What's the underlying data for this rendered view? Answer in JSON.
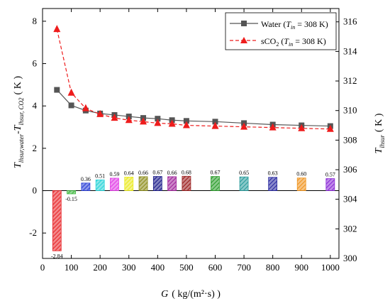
{
  "chart_data": {
    "type": "bar+line",
    "x_axis": {
      "label": "G",
      "unit": "( kg/(m²·s) )",
      "range": [
        0,
        1030
      ],
      "ticks": [
        0,
        100,
        200,
        300,
        400,
        500,
        600,
        700,
        800,
        900,
        1000
      ]
    },
    "y_left_axis": {
      "label_main": "T",
      "label_sub1": "lhsur,water",
      "label_mid": "-T",
      "label_sub2": "lhsur, CO2",
      "unit": "( K )",
      "range": [
        -3.2,
        8.6
      ],
      "ticks": [
        -2,
        0,
        2,
        4,
        6,
        8
      ]
    },
    "y_right_axis": {
      "label_main": "T",
      "label_sub": "lhsur",
      "unit": "( K )",
      "range": [
        300,
        316.9
      ],
      "ticks": [
        300,
        302,
        304,
        306,
        308,
        310,
        312,
        314,
        316
      ]
    },
    "bar_series": {
      "x": [
        50,
        100,
        150,
        200,
        250,
        300,
        350,
        400,
        450,
        500,
        600,
        700,
        800,
        900,
        1000
      ],
      "values": [
        -2.84,
        -0.15,
        0.36,
        0.51,
        0.59,
        0.64,
        0.66,
        0.67,
        0.66,
        0.68,
        0.67,
        0.65,
        0.63,
        0.6,
        0.57
      ],
      "labels": [
        "-2.84",
        "-0.15",
        "0.36",
        "0.51",
        "0.59",
        "0.64",
        "0.66",
        "0.67",
        "0.66",
        "0.68",
        "0.67",
        "0.65",
        "0.63",
        "0.60",
        "0.57"
      ],
      "colors": [
        "#e8262a",
        "#3db83d",
        "#2a3fd6",
        "#27d3d8",
        "#e23ee6",
        "#eaea1e",
        "#8c8c1a",
        "#1c1c8a",
        "#a0239a",
        "#9a1e1e",
        "#2a9c2a",
        "#2a9c9c",
        "#2a2aa0",
        "#f0941e",
        "#8a2ad6"
      ]
    },
    "line_series": [
      {
        "name_main": "Water (",
        "name_sym": "T",
        "name_sub": "in",
        "name_rest": " = 308 K)",
        "color": "#555555",
        "marker": "square",
        "style": "solid",
        "x": [
          50,
          100,
          150,
          200,
          250,
          300,
          350,
          400,
          450,
          500,
          600,
          700,
          800,
          900,
          1000
        ],
        "y": [
          311.4,
          310.35,
          310.0,
          309.8,
          309.7,
          309.6,
          309.5,
          309.45,
          309.35,
          309.3,
          309.25,
          309.15,
          309.05,
          309.0,
          308.95
        ]
      },
      {
        "name_main": "sCO",
        "name_sub0": "2",
        "name_open": " (",
        "name_sym": "T",
        "name_sub": "in",
        "name_rest": " = 308 K)",
        "color": "#ee1c1c",
        "marker": "triangle",
        "style": "dashed",
        "x": [
          50,
          100,
          150,
          200,
          250,
          300,
          350,
          400,
          450,
          500,
          600,
          700,
          800,
          900,
          1000
        ],
        "y": [
          315.5,
          311.2,
          310.15,
          309.75,
          309.5,
          309.35,
          309.25,
          309.15,
          309.1,
          309.0,
          308.95,
          308.9,
          308.85,
          308.8,
          308.75
        ]
      }
    ],
    "legend_position": "top-right"
  }
}
